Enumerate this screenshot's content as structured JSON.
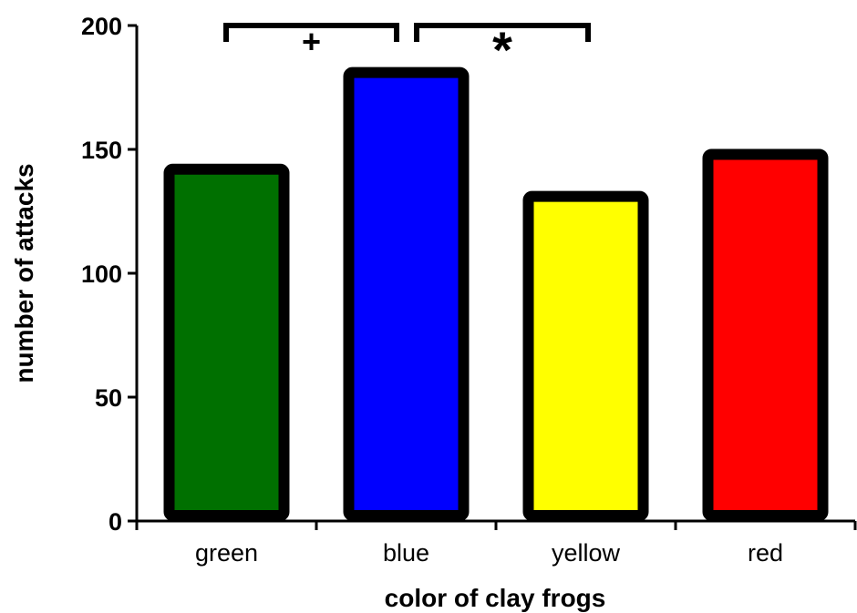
{
  "chart_data": {
    "type": "bar",
    "title": "",
    "xlabel": "color of clay frogs",
    "ylabel": "number of attacks",
    "categories": [
      "green",
      "blue",
      "yellow",
      "red"
    ],
    "values": [
      142,
      181,
      131,
      148
    ],
    "colors": [
      "#007000",
      "#0000ff",
      "#ffff00",
      "#ff0000"
    ],
    "ylim": [
      0,
      200
    ],
    "yticks": [
      0,
      50,
      100,
      150,
      200
    ],
    "grid": false,
    "legend": "none",
    "annotations": [
      {
        "from": "green",
        "to": "blue",
        "symbol": "+"
      },
      {
        "from": "blue",
        "to": "yellow",
        "symbol": "*"
      }
    ]
  }
}
